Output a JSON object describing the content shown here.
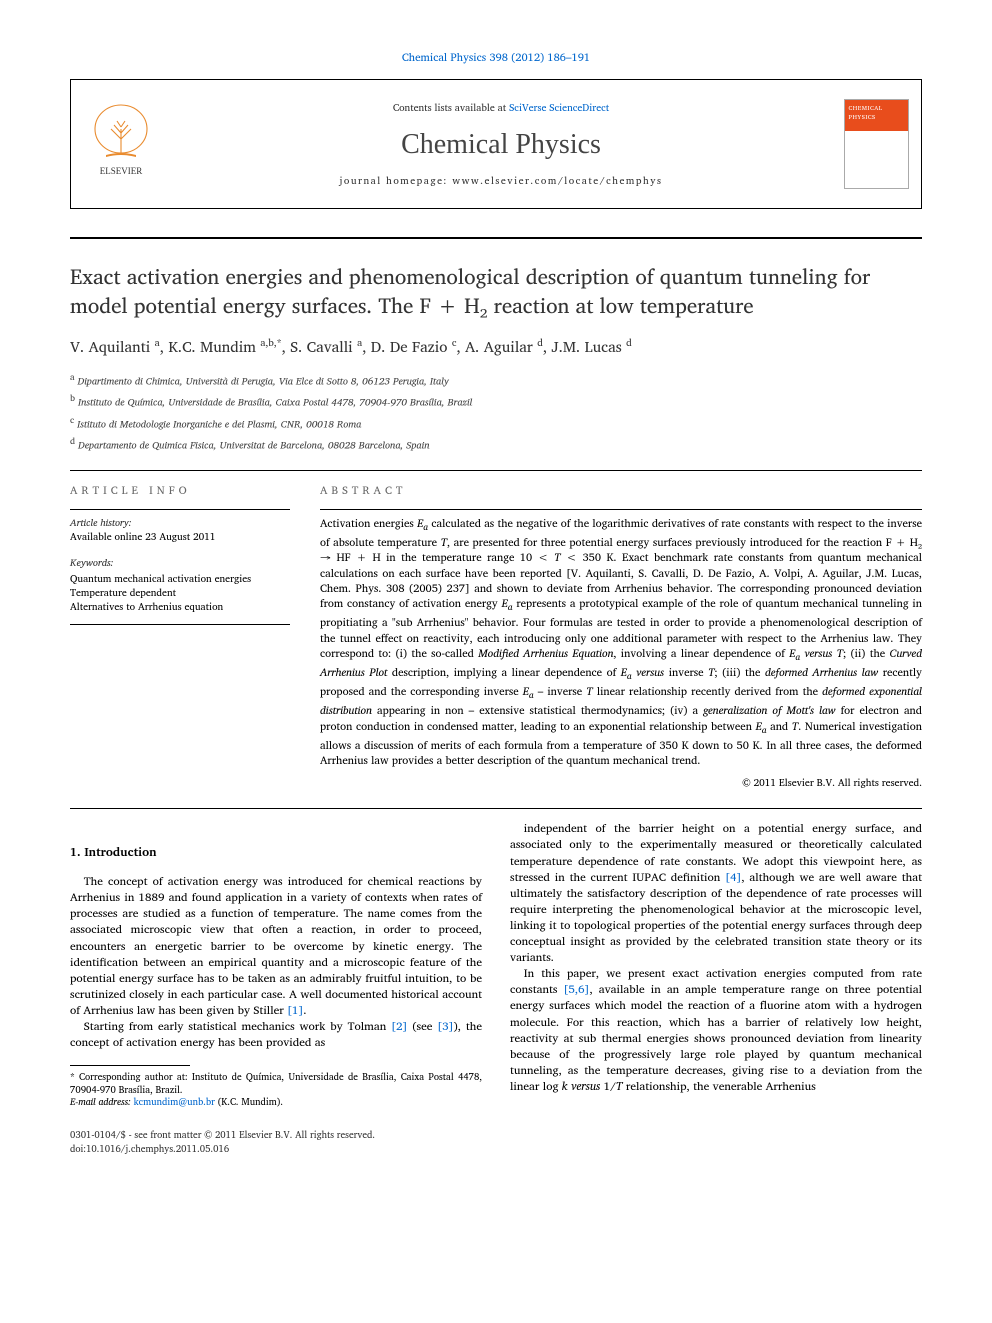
{
  "top_citation": "Chemical Physics 398 (2012) 186–191",
  "header": {
    "contents_prefix": "Contents lists available at ",
    "contents_link": "SciVerse ScienceDirect",
    "journal_name": "Chemical Physics",
    "homepage_prefix": "journal homepage: ",
    "homepage_url": "www.elsevier.com/locate/chemphys",
    "cover_label": "CHEMICAL PHYSICS"
  },
  "title": "Exact activation energies and phenomenological description of quantum tunneling for model potential energy surfaces. The F + H₂ reaction at low temperature",
  "authors_html": "V. Aquilanti <sup>a</sup>, K.C. Mundim <sup>a,b,*</sup>, S. Cavalli <sup>a</sup>, D. De Fazio <sup>c</sup>, A. Aguilar <sup>d</sup>, J.M. Lucas <sup>d</sup>",
  "affiliations": [
    {
      "sup": "a",
      "text": "Dipartimento di Chimica, Università di Perugia, Via Elce di Sotto 8, 06123 Perugia, Italy"
    },
    {
      "sup": "b",
      "text": "Instituto de Química, Universidade de Brasília, Caixa Postal 4478, 70904-970 Brasília, Brazil"
    },
    {
      "sup": "c",
      "text": "Istituto di Metodologie Inorganiche e dei Plasmi, CNR, 00018 Roma"
    },
    {
      "sup": "d",
      "text": "Departamento de Quimica Fisica, Universitat de Barcelona, 08028 Barcelona, Spain"
    }
  ],
  "meta": {
    "info_heading": "article info",
    "history_label": "Article history:",
    "history_text": "Available online 23 August 2011",
    "keywords_label": "Keywords:",
    "keywords": [
      "Quantum mechanical activation energies",
      "Temperature dependent",
      "Alternatives to Arrhenius equation"
    ]
  },
  "abstract": {
    "heading": "abstract",
    "body_html": "Activation energies <i>E<sub>a</sub></i> calculated as the negative of the logarithmic derivatives of rate constants with respect to the inverse of absolute temperature <i>T</i>, are presented for three potential energy surfaces previously introduced for the reaction F + H₂ → HF + H in the temperature range 10 < <i>T</i> < 350 K. Exact benchmark rate constants from quantum mechanical calculations on each surface have been reported [V. Aquilanti, S. Cavalli, D. De Fazio, A. Volpi, A. Aguilar, J.M. Lucas, Chem. Phys. 308 (2005) 237] and shown to deviate from Arrhenius behavior. The corresponding pronounced deviation from constancy of activation energy <i>E<sub>a</sub></i> represents a prototypical example of the role of quantum mechanical tunneling in propitiating a \"sub Arrhenius\" behavior. Four formulas are tested in order to provide a phenomenological description of the tunnel effect on reactivity, each introducing only one additional parameter with respect to the Arrhenius law. They correspond to: (i) the so-called <i>Modified Arrhenius Equation</i>, involving a linear dependence of <i>E<sub>a</sub> versus T</i>; (ii) the <i>Curved Arrhenius Plot</i> description, implying a linear dependence of <i>E<sub>a</sub> versus</i> inverse <i>T</i>; (iii) the <i>deformed Arrhenius law</i> recently proposed and the corresponding inverse <i>E<sub>a</sub></i> – inverse <i>T</i> linear relationship recently derived from the <i>deformed exponential distribution</i> appearing in non – extensive statistical thermodynamics; (iv) a <i>generalization of Mott's law</i> for electron and proton conduction in condensed matter, leading to an exponential relationship between <i>E<sub>a</sub></i> and <i>T</i>. Numerical investigation allows a discussion of merits of each formula from a temperature of 350 K down to 50 K. In all three cases, the deformed Arrhenius law provides a better description of the quantum mechanical trend.",
    "copyright": "© 2011 Elsevier B.V. All rights reserved."
  },
  "intro": {
    "heading": "1. Introduction",
    "para1_html": "The concept of activation energy was introduced for chemical reactions by Arrhenius in 1889 and found application in a variety of contexts when rates of processes are studied as a function of temperature. The name comes from the associated microscopic view that often a reaction, in order to proceed, encounters an energetic barrier to be overcome by kinetic energy. The identification between an empirical quantity and a microscopic feature of the potential energy surface has to be taken as an admirably fruitful intuition, to be scrutinized closely in each particular case. A well documented historical account of Arrhenius law has been given by Stiller <a href=\"#\">[1]</a>.",
    "para2_html": "Starting from early statistical mechanics work by Tolman <a href=\"#\">[2]</a> (see <a href=\"#\">[3]</a>), the concept of activation energy has been provided as",
    "para3_html": "independent of the barrier height on a potential energy surface, and associated only to the experimentally measured or theoretically calculated temperature dependence of rate constants. We adopt this viewpoint here, as stressed in the current IUPAC definition <a href=\"#\">[4]</a>, although we are well aware that ultimately the satisfactory description of the dependence of rate processes will require interpreting the phenomenological behavior at the microscopic level, linking it to topological properties of the potential energy surfaces through deep conceptual insight as provided by the celebrated transition state theory or its variants.",
    "para4_html": "In this paper, we present exact activation energies computed from rate constants <a href=\"#\">[5,6]</a>, available in an ample temperature range on three potential energy surfaces which model the reaction of a fluorine atom with a hydrogen molecule. For this reaction, which has a barrier of relatively low height, reactivity at sub thermal energies shows pronounced deviation from linearity because of the progressively large role played by quantum mechanical tunneling, as the temperature decreases, giving rise to a deviation from the linear log <i>k versus</i> 1/<i>T</i> relationship, the venerable Arrhenius"
  },
  "footnote": {
    "corr_html": "* Corresponding author at: Instituto de Química, Universidade de Brasília, Caixa Postal 4478, 70904-970 Brasília, Brazil.",
    "email_label": "E-mail address:",
    "email": "kcmundim@unb.br",
    "email_author": "(K.C. Mundim)."
  },
  "bottom": {
    "issn_line": "0301-0104/$ - see front matter © 2011 Elsevier B.V. All rights reserved.",
    "doi_line": "doi:10.1016/j.chemphys.2011.05.016"
  },
  "colors": {
    "link": "#0066cc",
    "elsevier_orange": "#e98b2e",
    "cover_orange": "#e84d1c"
  }
}
